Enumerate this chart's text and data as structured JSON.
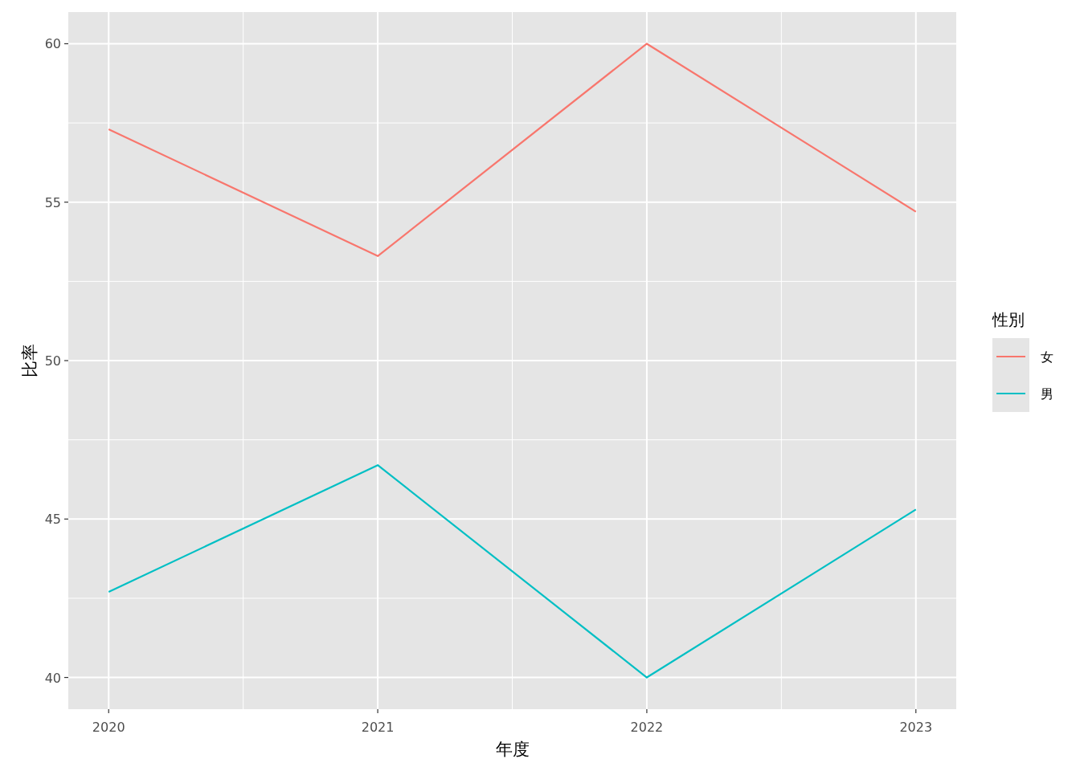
{
  "chart_data": {
    "type": "line",
    "xlabel": "年度",
    "ylabel": "比率",
    "legend_title": "性別",
    "x": [
      2020,
      2021,
      2022,
      2023
    ],
    "series": [
      {
        "name": "女",
        "color": "#f8766d",
        "values": [
          57.3,
          53.3,
          60.0,
          54.7
        ]
      },
      {
        "name": "男",
        "color": "#00bfc4",
        "values": [
          42.7,
          46.7,
          40.0,
          45.3
        ]
      }
    ],
    "xlim": [
      2019.85,
      2023.15
    ],
    "ylim": [
      39,
      61
    ],
    "xticks": [
      2020,
      2021,
      2022,
      2023
    ],
    "yticks": [
      40,
      45,
      50,
      55,
      60
    ],
    "grid": true,
    "legend": "right"
  }
}
